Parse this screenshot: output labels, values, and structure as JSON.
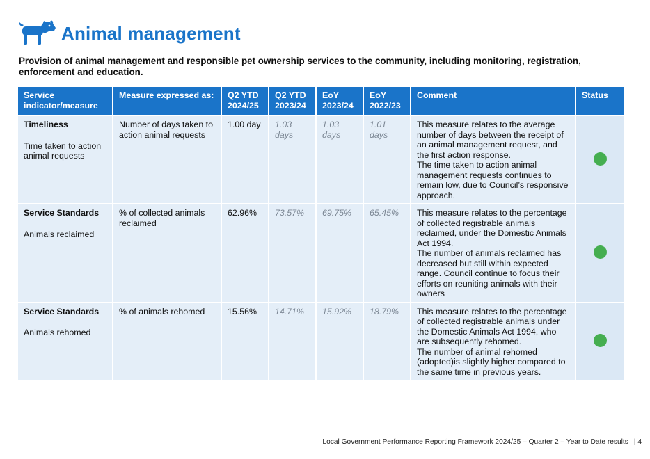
{
  "header": {
    "title": "Animal management",
    "icon": "dog-icon",
    "accent_color": "#1a74c9"
  },
  "intro": "Provision of animal management and responsible pet ownership services to the community, including monitoring, registration, enforcement and education.",
  "table": {
    "columns": [
      "Service indicator/measure",
      "Measure expressed as:",
      "Q2 YTD 2024/25",
      "Q2 YTD 2023/24",
      "EoY 2023/24",
      "EoY 2022/23",
      "Comment",
      "Status"
    ],
    "rows": [
      {
        "indicator": "Timeliness",
        "sub": "Time taken to action animal requests",
        "measure": "Number of days taken to action animal requests",
        "q2_2425": "1.00 day",
        "q2_2324": "1.03 days",
        "eoy_2324": "1.03 days",
        "eoy_2223": "1.01 days",
        "comment_1": "This measure relates to the average number of days between the receipt of an animal management request, and the first action response.",
        "comment_2": "The time taken to action animal management requests continues to remain low, due to Council’s responsive approach.",
        "status_color": "#45ae50"
      },
      {
        "indicator": "Service Standards",
        "sub": "Animals reclaimed",
        "measure": "% of collected animals reclaimed",
        "q2_2425": "62.96%",
        "q2_2324": "73.57%",
        "eoy_2324": "69.75%",
        "eoy_2223": "65.45%",
        "comment_1": "This measure relates to the percentage of collected registrable animals reclaimed, under the Domestic Animals Act 1994.",
        "comment_2": "The number of animals reclaimed has decreased but still within expected range. Council continue to focus their efforts on reuniting animals with their owners",
        "status_color": "#45ae50"
      },
      {
        "indicator": "Service Standards",
        "sub": "Animals rehomed",
        "measure": "% of animals rehomed",
        "q2_2425": "15.56%",
        "q2_2324": "14.71%",
        "eoy_2324": "15.92%",
        "eoy_2223": "18.79%",
        "comment_1": "This measure relates to the percentage of collected registrable animals under the Domestic Animals Act 1994, who are subsequently rehomed.",
        "comment_2": "The number of animal rehomed (adopted)is slightly higher compared to the same time in previous years.",
        "status_color": "#45ae50"
      }
    ]
  },
  "footer": {
    "text": "Local Government Performance Reporting Framework 2024/25 – Quarter 2 – Year to Date results",
    "page": "| 4"
  }
}
